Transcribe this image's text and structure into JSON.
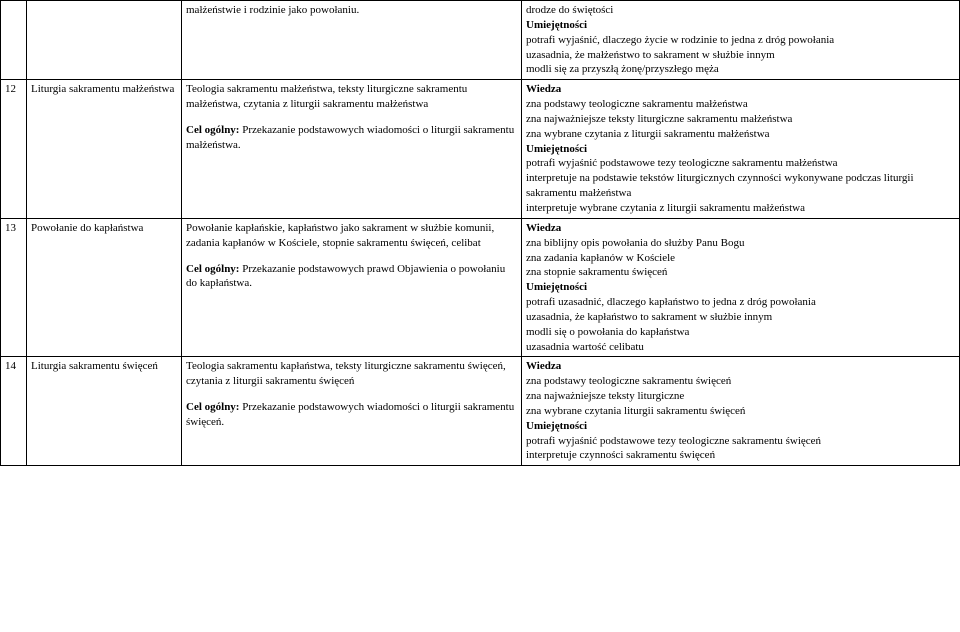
{
  "rows": [
    {
      "num": "",
      "topic": "",
      "col3": [
        {
          "t": "małżeństwie i rodzinie jako powołaniu.",
          "b": false
        }
      ],
      "col4": [
        {
          "t": "drodze do świętości",
          "b": false
        },
        {
          "t": "Umiejętności",
          "b": true
        },
        {
          "t": "potrafi wyjaśnić, dlaczego życie w rodzinie to jedna z dróg powołania",
          "b": false
        },
        {
          "t": "uzasadnia, że małżeństwo to sakrament w służbie innym",
          "b": false
        },
        {
          "t": "modli się za przyszłą żonę/przyszłego męża",
          "b": false
        }
      ]
    },
    {
      "num": "12",
      "topic": "Liturgia sakramentu małżeństwa",
      "col3": [
        {
          "t": "Teologia sakramentu małżeństwa, teksty liturgiczne sakramentu małżeństwa, czytania z liturgii sakramentu małżeństwa",
          "b": false
        },
        {
          "t": "",
          "b": false,
          "spacer": true
        },
        {
          "t": "Cel ogólny: ",
          "b": true,
          "inline": "Przekazanie podstawowych wiadomości o liturgii sakramentu małżeństwa."
        }
      ],
      "col4": [
        {
          "t": "Wiedza",
          "b": true
        },
        {
          "t": "zna podstawy teologiczne sakramentu małżeństwa",
          "b": false
        },
        {
          "t": "zna najważniejsze teksty liturgiczne sakramentu małżeństwa",
          "b": false
        },
        {
          "t": "zna wybrane czytania z liturgii sakramentu małżeństwa",
          "b": false
        },
        {
          "t": "Umiejętności",
          "b": true
        },
        {
          "t": "potrafi wyjaśnić podstawowe tezy teologiczne sakramentu małżeństwa",
          "b": false
        },
        {
          "t": "interpretuje na podstawie tekstów liturgicznych czynności wykonywane podczas liturgii sakramentu małżeństwa",
          "b": false
        },
        {
          "t": "interpretuje wybrane czytania z liturgii sakramentu małżeństwa",
          "b": false
        }
      ]
    },
    {
      "num": "13",
      "topic": "Powołanie do kapłaństwa",
      "col3": [
        {
          "t": "Powołanie kapłańskie, kapłaństwo jako sakrament w służbie komunii, zadania kapłanów w Kościele, stopnie sakramentu święceń, celibat",
          "b": false
        },
        {
          "t": "",
          "b": false,
          "spacer": true
        },
        {
          "t": "Cel ogólny: ",
          "b": true,
          "inline": "Przekazanie podstawowych prawd Objawienia o powołaniu do kapłaństwa."
        }
      ],
      "col4": [
        {
          "t": "Wiedza",
          "b": true
        },
        {
          "t": "zna biblijny opis powołania do służby Panu Bogu",
          "b": false
        },
        {
          "t": "zna zadania kapłanów w Kościele",
          "b": false
        },
        {
          "t": "zna stopnie sakramentu święceń",
          "b": false
        },
        {
          "t": "Umiejętności",
          "b": true
        },
        {
          "t": "potrafi uzasadnić, dlaczego kapłaństwo to jedna z dróg powołania",
          "b": false
        },
        {
          "t": "uzasadnia, że kapłaństwo to sakrament w służbie innym",
          "b": false
        },
        {
          "t": "modli się o powołania do kapłaństwa",
          "b": false
        },
        {
          "t": "uzasadnia wartość celibatu",
          "b": false
        }
      ]
    },
    {
      "num": "14",
      "topic": "Liturgia sakramentu święceń",
      "col3": [
        {
          "t": "Teologia sakramentu kapłaństwa, teksty liturgiczne sakramentu święceń, czytania z liturgii sakramentu święceń",
          "b": false
        },
        {
          "t": "",
          "b": false,
          "spacer": true
        },
        {
          "t": "Cel ogólny: ",
          "b": true,
          "inline": "Przekazanie podstawowych wiadomości o liturgii sakramentu święceń."
        }
      ],
      "col4": [
        {
          "t": "Wiedza",
          "b": true
        },
        {
          "t": "zna podstawy teologiczne sakramentu święceń",
          "b": false
        },
        {
          "t": "zna najważniejsze teksty liturgiczne",
          "b": false
        },
        {
          "t": "zna wybrane czytania liturgii sakramentu święceń",
          "b": false
        },
        {
          "t": "Umiejętności",
          "b": true
        },
        {
          "t": "potrafi wyjaśnić podstawowe tezy teologiczne sakramentu święceń",
          "b": false
        },
        {
          "t": "interpretuje czynności sakramentu święceń",
          "b": false
        }
      ]
    }
  ]
}
